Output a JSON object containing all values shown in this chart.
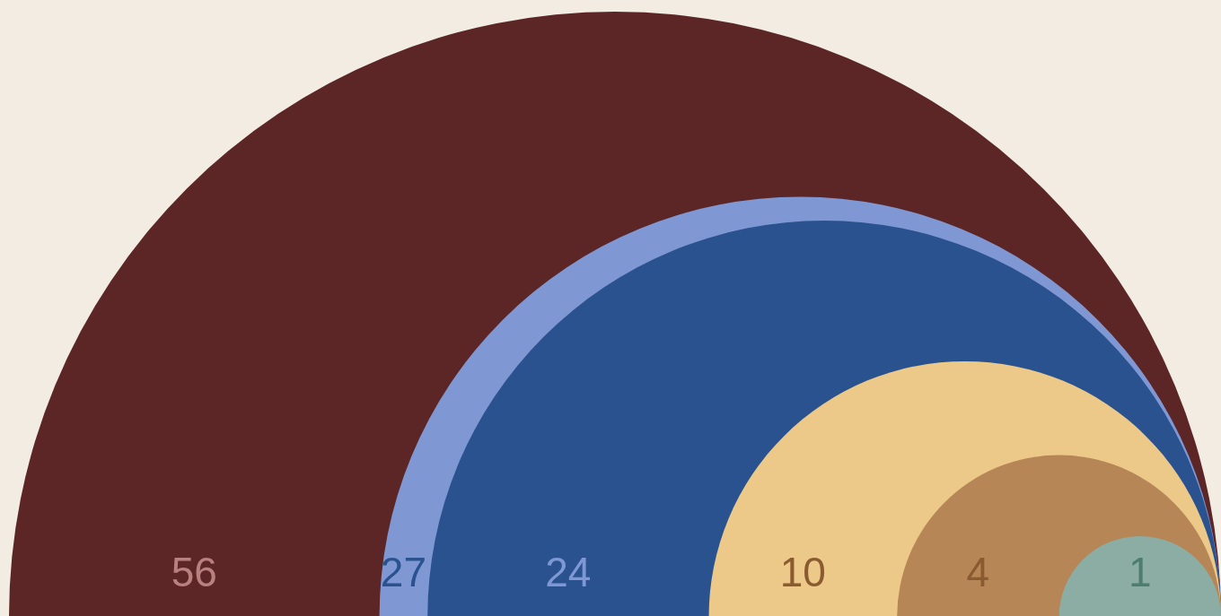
{
  "chart_data": {
    "type": "other",
    "values": [
      56,
      27,
      24,
      10,
      4,
      1
    ],
    "colors": [
      "#5c2627",
      "#7f98d4",
      "#29528f",
      "#ecc988",
      "#b68657",
      "#8cada4"
    ],
    "data_labels": true
  }
}
